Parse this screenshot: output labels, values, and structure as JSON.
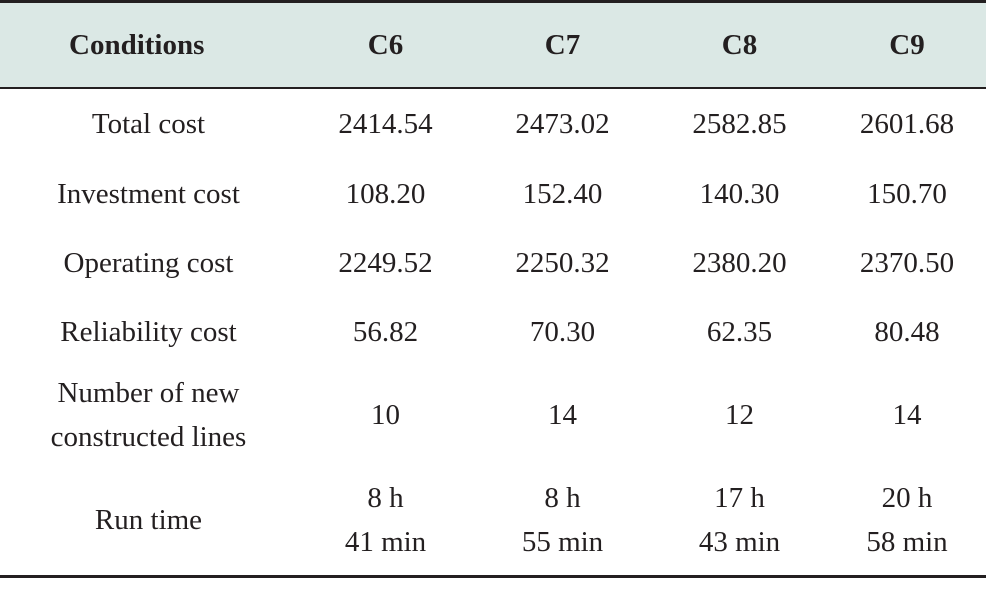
{
  "table": {
    "header": {
      "conditions": "Conditions",
      "cols": [
        "C6",
        "C7",
        "C8",
        "C9"
      ]
    },
    "rows": [
      {
        "label": [
          "Total cost"
        ],
        "values": [
          [
            "2414.54"
          ],
          [
            "2473.02"
          ],
          [
            "2582.85"
          ],
          [
            "2601.68"
          ]
        ]
      },
      {
        "label": [
          "Investment cost"
        ],
        "values": [
          [
            "108.20"
          ],
          [
            "152.40"
          ],
          [
            "140.30"
          ],
          [
            "150.70"
          ]
        ]
      },
      {
        "label": [
          "Operating cost"
        ],
        "values": [
          [
            "2249.52"
          ],
          [
            "2250.32"
          ],
          [
            "2380.20"
          ],
          [
            "2370.50"
          ]
        ]
      },
      {
        "label": [
          "Reliability cost"
        ],
        "values": [
          [
            "56.82"
          ],
          [
            "70.30"
          ],
          [
            "62.35"
          ],
          [
            "80.48"
          ]
        ]
      },
      {
        "label": [
          "Number of new",
          "constructed lines"
        ],
        "values": [
          [
            "10"
          ],
          [
            "14"
          ],
          [
            "12"
          ],
          [
            "14"
          ]
        ]
      },
      {
        "label": [
          "Run time"
        ],
        "values": [
          [
            "8 h",
            "41 min"
          ],
          [
            "8 h",
            "55 min"
          ],
          [
            "17 h",
            "43 min"
          ],
          [
            "20 h",
            "58 min"
          ]
        ]
      }
    ]
  }
}
